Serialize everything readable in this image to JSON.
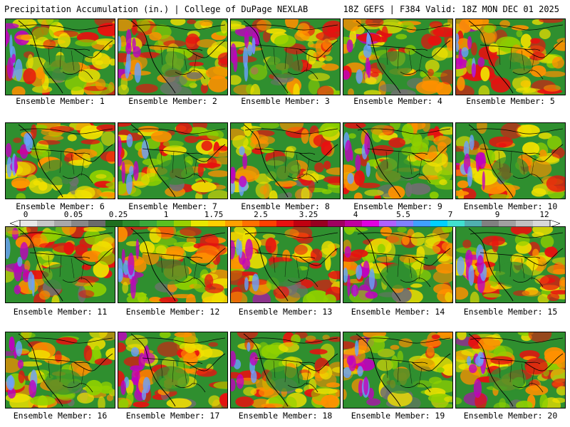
{
  "header": {
    "left": "Precipitation Accumulation (in.) | College of DuPage NEXLAB",
    "right": "18Z GEFS | F384 Valid: 18Z MON DEC 01 2025"
  },
  "members": [
    {
      "label": "Ensemble Member: 1"
    },
    {
      "label": "Ensemble Member: 2"
    },
    {
      "label": "Ensemble Member: 3"
    },
    {
      "label": "Ensemble Member: 4"
    },
    {
      "label": "Ensemble Member: 5"
    },
    {
      "label": "Ensemble Member: 6"
    },
    {
      "label": "Ensemble Member: 7"
    },
    {
      "label": "Ensemble Member: 8"
    },
    {
      "label": "Ensemble Member: 9"
    },
    {
      "label": "Ensemble Member: 10"
    },
    {
      "label": "Ensemble Member: 11"
    },
    {
      "label": "Ensemble Member: 12"
    },
    {
      "label": "Ensemble Member: 13"
    },
    {
      "label": "Ensemble Member: 14"
    },
    {
      "label": "Ensemble Member: 15"
    },
    {
      "label": "Ensemble Member: 16"
    },
    {
      "label": "Ensemble Member: 17"
    },
    {
      "label": "Ensemble Member: 18"
    },
    {
      "label": "Ensemble Member: 19"
    },
    {
      "label": "Ensemble Member: 20"
    }
  ],
  "legend": {
    "ticks": [
      "0",
      "0.05",
      "0.25",
      "1",
      "1.75",
      "2.5",
      "3.25",
      "4",
      "5.5",
      "7",
      "9",
      "12"
    ],
    "colors": [
      "#e8e8e8",
      "#c8c8c8",
      "#a8a8a8",
      "#888888",
      "#6a6a6a",
      "#1e6e1e",
      "#2c8c2c",
      "#3aa83a",
      "#5ac020",
      "#9ad000",
      "#e8e800",
      "#ffd000",
      "#ffa000",
      "#ff7000",
      "#ff4000",
      "#e81010",
      "#c00010",
      "#980020",
      "#a00060",
      "#c000a0",
      "#e000e0",
      "#b060ff",
      "#8080ff",
      "#40a0ff",
      "#00d0ff",
      "#40e0d0",
      "#50b0b0",
      "#808080",
      "#a0a0a0",
      "#c0c0c0",
      "#d8d8d8"
    ]
  },
  "map_colors": {
    "land": "#2f8f2f",
    "dry": "#707070",
    "light": "#8fd000",
    "moist": "#f0e000",
    "wet": "#ff9000",
    "heavy": "#e81010",
    "extreme": "#c000c0",
    "max": "#6aa0ff",
    "border": "#000000"
  }
}
